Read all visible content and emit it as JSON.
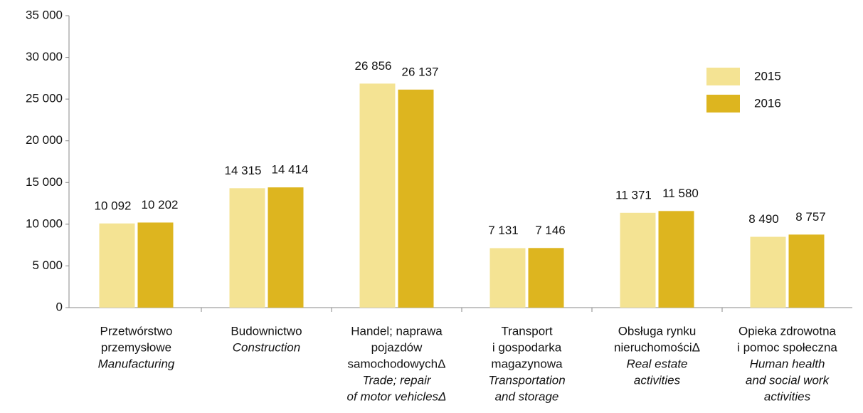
{
  "chart_data": {
    "type": "bar",
    "categories": [
      {
        "pl": [
          "Przetwórstwo",
          "przemysłowe"
        ],
        "en": [
          "Manufacturing"
        ]
      },
      {
        "pl": [
          "Budownictwo"
        ],
        "en": [
          "Construction"
        ]
      },
      {
        "pl": [
          "Handel; naprawa",
          "pojazdów",
          "samochodowychΔ"
        ],
        "en": [
          "Trade; repair",
          "of motor vehiclesΔ"
        ]
      },
      {
        "pl": [
          "Transport",
          "i gospodarka",
          "magazynowa"
        ],
        "en": [
          "Transportation",
          "and storage"
        ]
      },
      {
        "pl": [
          "Obsługa rynku",
          "nieruchomościΔ"
        ],
        "en": [
          "Real estate",
          "activities"
        ]
      },
      {
        "pl": [
          "Opieka zdrowotna",
          "i pomoc społeczna"
        ],
        "en": [
          "Human health",
          "and social work",
          "activities"
        ]
      }
    ],
    "series": [
      {
        "name": "2015",
        "color": "#f4e393",
        "values": [
          10092,
          14315,
          26856,
          7131,
          11371,
          8490
        ],
        "value_labels": [
          "10 092",
          "14 315",
          "26 856",
          "7 131",
          "11 371",
          "8 490"
        ]
      },
      {
        "name": "2016",
        "color": "#ddb51f",
        "values": [
          10202,
          14414,
          26137,
          7146,
          11580,
          8757
        ],
        "value_labels": [
          "10 202",
          "14 414",
          "26 137",
          "7 146",
          "11 580",
          "8 757"
        ]
      }
    ],
    "ylim": [
      0,
      35000
    ],
    "yticks": [
      {
        "value": 0,
        "label": "0"
      },
      {
        "value": 5000,
        "label": "5 000"
      },
      {
        "value": 10000,
        "label": "10 000"
      },
      {
        "value": 15000,
        "label": "15 000"
      },
      {
        "value": 20000,
        "label": "20 000"
      },
      {
        "value": 25000,
        "label": "25 000"
      },
      {
        "value": 30000,
        "label": "30 000"
      },
      {
        "value": 35000,
        "label": "35 000"
      }
    ],
    "legend": "upper right"
  }
}
